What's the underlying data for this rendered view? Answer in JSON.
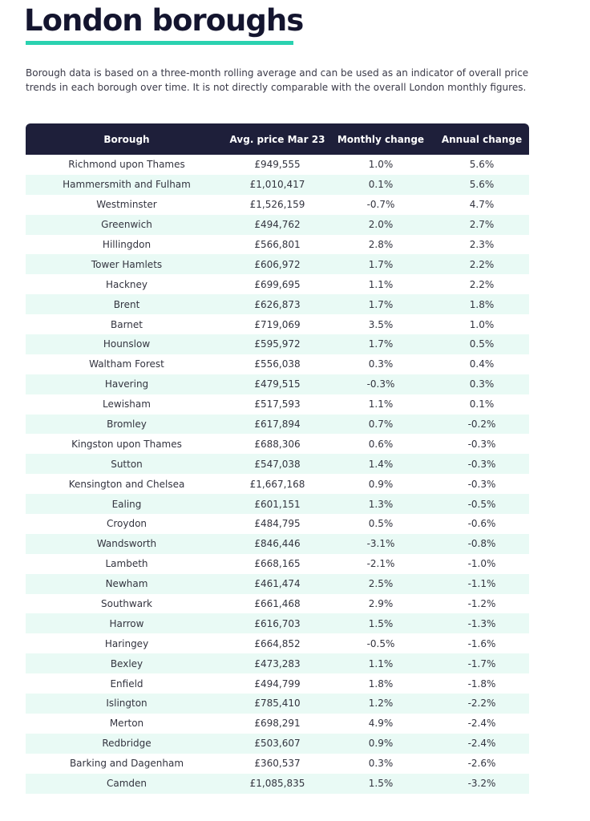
{
  "header": {
    "title": "London boroughs",
    "intro": "Borough data is based on a three-month rolling average and can be used as an indicator of overall price trends in each borough over time. It is not directly comparable with the overall London monthly figures."
  },
  "table": {
    "columns": [
      "Borough",
      "Avg. price Mar 23",
      "Monthly change",
      "Annual change"
    ],
    "rows": [
      [
        "Richmond upon Thames",
        "£949,555",
        "1.0%",
        "5.6%"
      ],
      [
        "Hammersmith and Fulham",
        "£1,010,417",
        "0.1%",
        "5.6%"
      ],
      [
        "Westminster",
        "£1,526,159",
        "-0.7%",
        "4.7%"
      ],
      [
        "Greenwich",
        "£494,762",
        "2.0%",
        "2.7%"
      ],
      [
        "Hillingdon",
        "£566,801",
        "2.8%",
        "2.3%"
      ],
      [
        "Tower Hamlets",
        "£606,972",
        "1.7%",
        "2.2%"
      ],
      [
        "Hackney",
        "£699,695",
        "1.1%",
        "2.2%"
      ],
      [
        "Brent",
        "£626,873",
        "1.7%",
        "1.8%"
      ],
      [
        "Barnet",
        "£719,069",
        "3.5%",
        "1.0%"
      ],
      [
        "Hounslow",
        "£595,972",
        "1.7%",
        "0.5%"
      ],
      [
        "Waltham Forest",
        "£556,038",
        "0.3%",
        "0.4%"
      ],
      [
        "Havering",
        "£479,515",
        "-0.3%",
        "0.3%"
      ],
      [
        "Lewisham",
        "£517,593",
        "1.1%",
        "0.1%"
      ],
      [
        "Bromley",
        "£617,894",
        "0.7%",
        "-0.2%"
      ],
      [
        "Kingston upon Thames",
        "£688,306",
        "0.6%",
        "-0.3%"
      ],
      [
        "Sutton",
        "£547,038",
        "1.4%",
        "-0.3%"
      ],
      [
        "Kensington and Chelsea",
        "£1,667,168",
        "0.9%",
        "-0.3%"
      ],
      [
        "Ealing",
        "£601,151",
        "1.3%",
        "-0.5%"
      ],
      [
        "Croydon",
        "£484,795",
        "0.5%",
        "-0.6%"
      ],
      [
        "Wandsworth",
        "£846,446",
        "-3.1%",
        "-0.8%"
      ],
      [
        "Lambeth",
        "£668,165",
        "-2.1%",
        "-1.0%"
      ],
      [
        "Newham",
        "£461,474",
        "2.5%",
        "-1.1%"
      ],
      [
        "Southwark",
        "£661,468",
        "2.9%",
        "-1.2%"
      ],
      [
        "Harrow",
        "£616,703",
        "1.5%",
        "-1.3%"
      ],
      [
        "Haringey",
        "£664,852",
        "-0.5%",
        "-1.6%"
      ],
      [
        "Bexley",
        "£473,283",
        "1.1%",
        "-1.7%"
      ],
      [
        "Enfield",
        "£494,799",
        "1.8%",
        "-1.8%"
      ],
      [
        "Islington",
        "£785,410",
        "1.2%",
        "-2.2%"
      ],
      [
        "Merton",
        "£698,291",
        "4.9%",
        "-2.4%"
      ],
      [
        "Redbridge",
        "£503,607",
        "0.9%",
        "-2.4%"
      ],
      [
        "Barking and Dagenham",
        "£360,537",
        "0.3%",
        "-2.6%"
      ],
      [
        "Camden",
        "£1,085,835",
        "1.5%",
        "-3.2%"
      ]
    ]
  }
}
